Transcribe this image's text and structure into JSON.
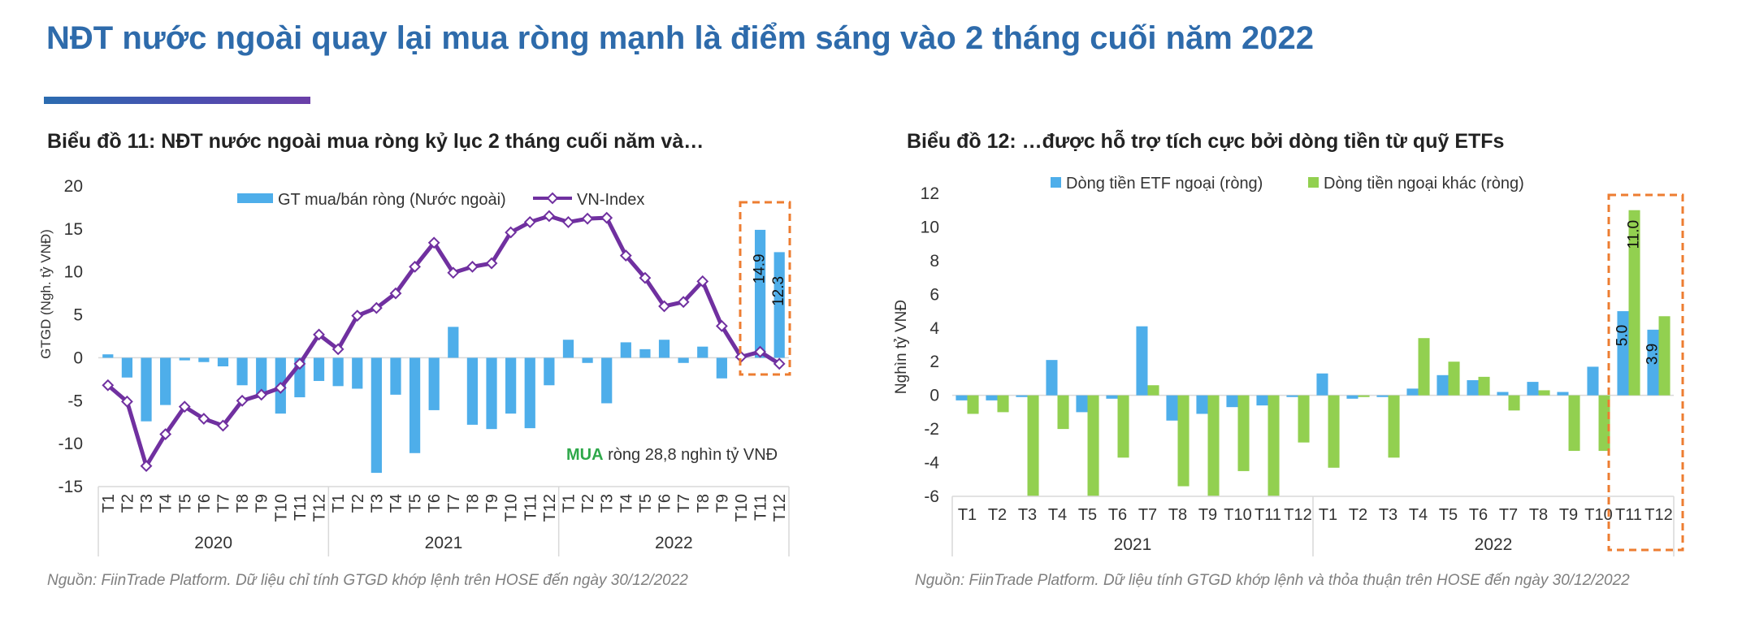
{
  "page": {
    "title": "NĐT nước ngoài quay lại mua ròng mạnh là điểm sáng vào 2 tháng cuối năm 2022"
  },
  "colors": {
    "title": "#2e6bab",
    "bar_blue": "#4eaeea",
    "bar_green": "#92d050",
    "line_purple": "#7030a0",
    "highlight": "#ed7d31",
    "annotation_green": "#2ea84a"
  },
  "chart_data": [
    {
      "id": "chart11",
      "type": "bar+line",
      "title": "Biểu đồ 11: NĐT nước ngoài mua ròng kỷ lục 2 tháng cuối năm và…",
      "ylabel": "GTGD (Ngh. tỷ VNĐ)",
      "ylim": [
        -15,
        20
      ],
      "yticks": [
        20,
        15,
        10,
        5,
        0,
        -5,
        -10,
        -15
      ],
      "categories": [
        "T1",
        "T2",
        "T3",
        "T4",
        "T5",
        "T6",
        "T7",
        "T8",
        "T9",
        "T10",
        "T11",
        "T12",
        "T1",
        "T2",
        "T3",
        "T4",
        "T5",
        "T6",
        "T7",
        "T8",
        "T9",
        "T10",
        "T11",
        "T12",
        "T1",
        "T2",
        "T3",
        "T4",
        "T5",
        "T6",
        "T7",
        "T8",
        "T9",
        "T10",
        "T11",
        "T12"
      ],
      "year_groups": [
        {
          "label": "2020",
          "count": 12
        },
        {
          "label": "2021",
          "count": 12
        },
        {
          "label": "2022",
          "count": 12
        }
      ],
      "series": [
        {
          "name": "GT mua/bán ròng (Nước ngoài)",
          "type": "bar",
          "values": [
            0.4,
            -2.3,
            -7.4,
            -5.5,
            -0.3,
            -0.5,
            -1.0,
            -3.2,
            -4.3,
            -6.5,
            -4.6,
            -2.7,
            -3.3,
            -3.6,
            -13.4,
            -4.3,
            -11.1,
            -6.1,
            3.6,
            -7.8,
            -8.3,
            -6.5,
            -8.2,
            -3.2,
            2.1,
            -0.6,
            -5.3,
            1.8,
            1.0,
            2.1,
            -0.6,
            1.3,
            -2.4,
            0,
            14.9,
            12.3
          ]
        },
        {
          "name": "VN-Index",
          "type": "line",
          "values": [
            -3.2,
            -5.1,
            -12.6,
            -8.9,
            -5.7,
            -7.1,
            -7.9,
            -5.0,
            -4.3,
            -3.5,
            -0.7,
            2.7,
            1.0,
            4.9,
            5.8,
            7.5,
            10.6,
            13.4,
            9.9,
            10.6,
            11.0,
            14.6,
            15.8,
            16.5,
            15.8,
            16.2,
            16.3,
            11.9,
            9.3,
            6.0,
            6.5,
            8.9,
            3.7,
            0.1,
            0.7,
            -0.7
          ]
        }
      ],
      "data_labels": [
        {
          "index": 34,
          "text": "14.9"
        },
        {
          "index": 35,
          "text": "12.3"
        }
      ],
      "annotation": {
        "highlight": "MUA",
        "rest": " ròng 28,8 nghìn tỷ VNĐ"
      },
      "legend_position": "top-center"
    },
    {
      "id": "chart12",
      "type": "bar",
      "title": "Biểu đồ 12: …được hỗ trợ tích cực bởi dòng tiền từ quỹ ETFs",
      "ylabel": "Nghìn tỷ VNĐ",
      "ylim": [
        -6,
        12
      ],
      "yticks": [
        12,
        10,
        8,
        6,
        4,
        2,
        0,
        -2,
        -4,
        -6
      ],
      "categories": [
        "T1",
        "T2",
        "T3",
        "T4",
        "T5",
        "T6",
        "T7",
        "T8",
        "T9",
        "T10",
        "T11",
        "T12",
        "T1",
        "T2",
        "T3",
        "T4",
        "T5",
        "T6",
        "T7",
        "T8",
        "T9",
        "T10",
        "T11",
        "T12"
      ],
      "year_groups": [
        {
          "label": "2021",
          "count": 12
        },
        {
          "label": "2022",
          "count": 12
        }
      ],
      "series": [
        {
          "name": "Dòng tiền ETF ngoại (ròng)",
          "values": [
            -0.3,
            -0.3,
            -0.1,
            2.1,
            -1.0,
            -0.2,
            4.1,
            -1.5,
            -1.1,
            -0.7,
            -0.6,
            -0.1,
            1.3,
            -0.2,
            -0.1,
            0.4,
            1.2,
            0.9,
            0.2,
            0.8,
            0.2,
            1.7,
            5.0,
            3.9
          ]
        },
        {
          "name": "Dòng tiền ngoại khác (ròng)",
          "values": [
            -1.1,
            -1.0,
            -6.0,
            -2.0,
            -6.0,
            -3.7,
            0.6,
            -5.4,
            -6.0,
            -4.5,
            -6.0,
            -2.8,
            -4.3,
            -0.1,
            -3.7,
            3.4,
            2.0,
            1.1,
            -0.9,
            0.3,
            -3.3,
            -3.3,
            11.0,
            4.7
          ]
        }
      ],
      "data_labels": [
        {
          "series": 0,
          "index": 22,
          "text": "5.0"
        },
        {
          "series": 0,
          "index": 23,
          "text": "3.9"
        },
        {
          "series": 1,
          "index": 22,
          "text": "11.0"
        }
      ],
      "legend_position": "top-center"
    }
  ],
  "sources": {
    "chart11": "Nguồn: FiinTrade Platform. Dữ liệu chỉ tính GTGD khớp lệnh trên HOSE đến ngày 30/12/2022",
    "chart12": "Nguồn: FiinTrade Platform. Dữ liệu tính GTGD khớp lệnh và thỏa thuận trên HOSE đến ngày 30/12/2022"
  }
}
